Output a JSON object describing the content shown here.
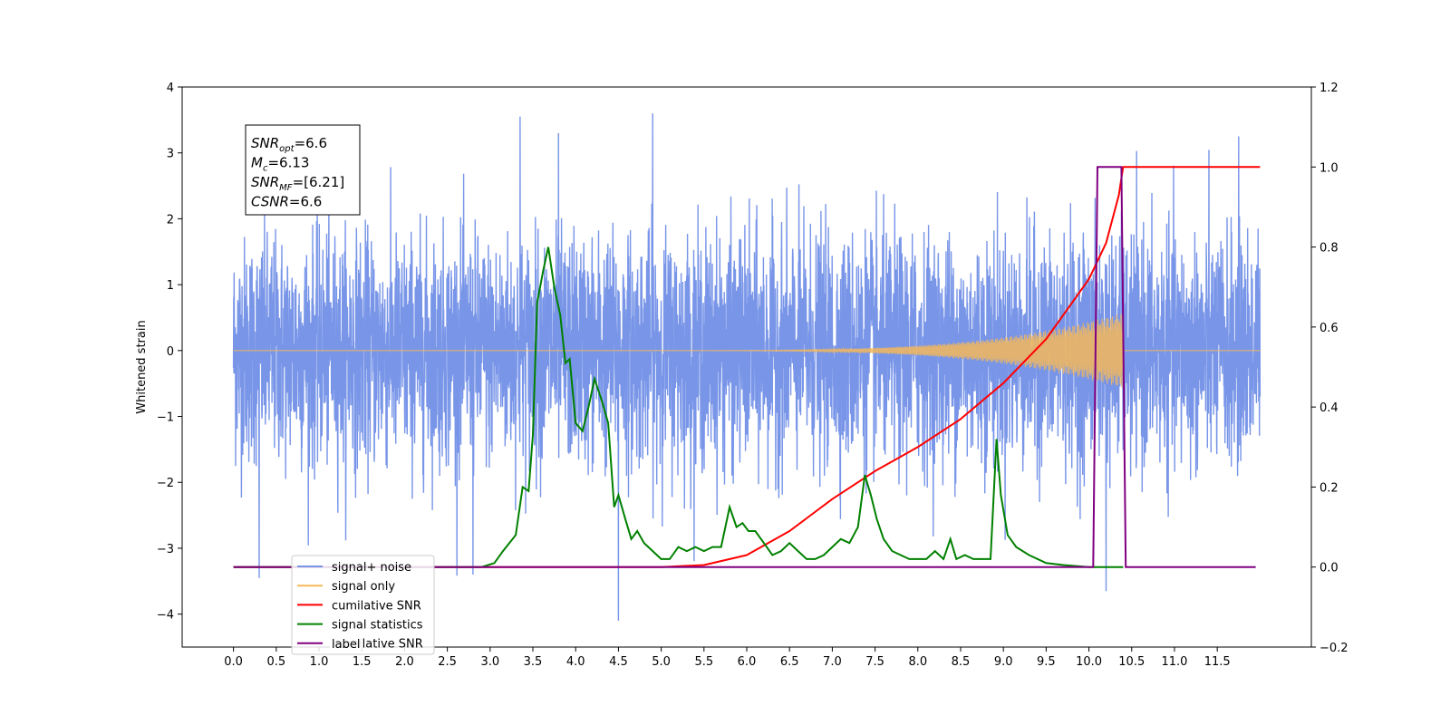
{
  "chart_data": {
    "type": "line",
    "xlabel": "",
    "ylabel": "Whitened strain",
    "ylabel_right": "",
    "xlim": [
      -0.6,
      12.6
    ],
    "ylim_left": [
      -4.5,
      4.0
    ],
    "ylim_right": [
      -0.2,
      1.2
    ],
    "x_ticks": [
      "0.0",
      "0.5",
      "1.0",
      "1.5",
      "2.0",
      "2.5",
      "3.0",
      "3.5",
      "4.0",
      "4.5",
      "5.0",
      "5.5",
      "6.0",
      "6.5",
      "7.0",
      "7.5",
      "8.0",
      "8.5",
      "9.0",
      "9.5",
      "10.0",
      "10.5",
      "11.0",
      "11.5"
    ],
    "y_ticks_left": [
      "4",
      "3",
      "2",
      "1",
      "0",
      "−1",
      "−2",
      "−3",
      "−4"
    ],
    "y_ticks_right": [
      "1.2",
      "1.0",
      "0.8",
      "0.6",
      "0.4",
      "0.2",
      "0.0",
      "−0.2"
    ],
    "grid": false,
    "legend_position": "lower-left",
    "annotation": {
      "lines": [
        {
          "sym": "SNR",
          "sub": "opt",
          "val": "=6.6"
        },
        {
          "sym": "M",
          "sub": "c",
          "val": "=6.13"
        },
        {
          "sym": "SNR",
          "sub": "MF",
          "val": "=[6.21]"
        },
        {
          "sym": "CSNR",
          "sub": "",
          "val": "=6.6"
        }
      ]
    },
    "series": [
      {
        "name": "signal+ noise",
        "axis": "left",
        "color": "#7895e8",
        "description_level": "approximately zero-mean noise, amplitude ~1 with peaks to 3.6 / -4.1",
        "x_range": [
          0.0,
          12.0
        ],
        "notable_spikes": [
          {
            "x": 3.35,
            "y": 3.55
          },
          {
            "x": 3.8,
            "y": 3.3
          },
          {
            "x": 4.9,
            "y": 3.6
          },
          {
            "x": 11.75,
            "y": 3.25
          },
          {
            "x": 4.5,
            "y": -4.1
          },
          {
            "x": 0.3,
            "y": -3.45
          },
          {
            "x": 10.2,
            "y": -3.65
          },
          {
            "x": 2.8,
            "y": -3.4
          }
        ]
      },
      {
        "name": "signal only",
        "axis": "left",
        "color": "#f5b85a",
        "chirp_start": 5.5,
        "chirp_end": 10.4,
        "amplitude_start": 0.0,
        "amplitude_end": 0.55
      },
      {
        "name": "cumilative SNR",
        "axis": "right",
        "color": "#ff0000",
        "x": [
          0,
          5.0,
          5.5,
          6.0,
          6.5,
          7.0,
          7.5,
          8.0,
          8.5,
          9.0,
          9.5,
          10.0,
          10.2,
          10.35,
          10.4,
          12.0
        ],
        "y": [
          0.0,
          0.0,
          0.005,
          0.03,
          0.09,
          0.17,
          0.24,
          0.3,
          0.37,
          0.46,
          0.57,
          0.72,
          0.81,
          0.93,
          1.0,
          1.0
        ]
      },
      {
        "name": "signal statistics",
        "axis": "right",
        "color": "#008000",
        "x": [
          0,
          2.9,
          3.05,
          3.15,
          3.3,
          3.38,
          3.45,
          3.5,
          3.55,
          3.62,
          3.68,
          3.75,
          3.82,
          3.88,
          3.93,
          4.0,
          4.08,
          4.15,
          4.22,
          4.3,
          4.38,
          4.45,
          4.5,
          4.58,
          4.65,
          4.72,
          4.8,
          4.9,
          5.0,
          5.1,
          5.2,
          5.3,
          5.4,
          5.5,
          5.6,
          5.7,
          5.8,
          5.88,
          5.95,
          6.02,
          6.1,
          6.2,
          6.3,
          6.4,
          6.5,
          6.6,
          6.7,
          6.8,
          6.9,
          7.0,
          7.1,
          7.2,
          7.3,
          7.38,
          7.45,
          7.52,
          7.6,
          7.7,
          7.8,
          7.9,
          8.0,
          8.1,
          8.2,
          8.3,
          8.38,
          8.45,
          8.55,
          8.65,
          8.75,
          8.85,
          8.92,
          8.97,
          9.05,
          9.15,
          9.3,
          9.5,
          9.7,
          10.0,
          10.4
        ],
        "y": [
          0.0,
          0.0,
          0.01,
          0.04,
          0.08,
          0.2,
          0.19,
          0.33,
          0.66,
          0.74,
          0.8,
          0.7,
          0.63,
          0.51,
          0.52,
          0.36,
          0.34,
          0.4,
          0.47,
          0.42,
          0.36,
          0.15,
          0.18,
          0.12,
          0.07,
          0.09,
          0.06,
          0.04,
          0.02,
          0.02,
          0.05,
          0.04,
          0.05,
          0.04,
          0.05,
          0.05,
          0.15,
          0.1,
          0.11,
          0.09,
          0.09,
          0.06,
          0.03,
          0.04,
          0.06,
          0.04,
          0.02,
          0.02,
          0.03,
          0.05,
          0.07,
          0.06,
          0.1,
          0.23,
          0.18,
          0.12,
          0.07,
          0.04,
          0.03,
          0.02,
          0.02,
          0.02,
          0.04,
          0.02,
          0.07,
          0.02,
          0.03,
          0.02,
          0.02,
          0.02,
          0.32,
          0.18,
          0.08,
          0.05,
          0.03,
          0.01,
          0.005,
          0.0,
          0.0
        ]
      },
      {
        "name": "label",
        "axis": "right",
        "color": "#800080",
        "x": [
          0.0,
          10.05,
          10.1,
          10.38,
          10.43,
          11.95
        ],
        "y": [
          0.0,
          0.0,
          1.0,
          1.0,
          0.0,
          0.0
        ]
      },
      {
        "name": "cumilative SNR",
        "axis": "right",
        "color": "#aaaaaa",
        "hidden_behind_legend": true
      }
    ]
  }
}
